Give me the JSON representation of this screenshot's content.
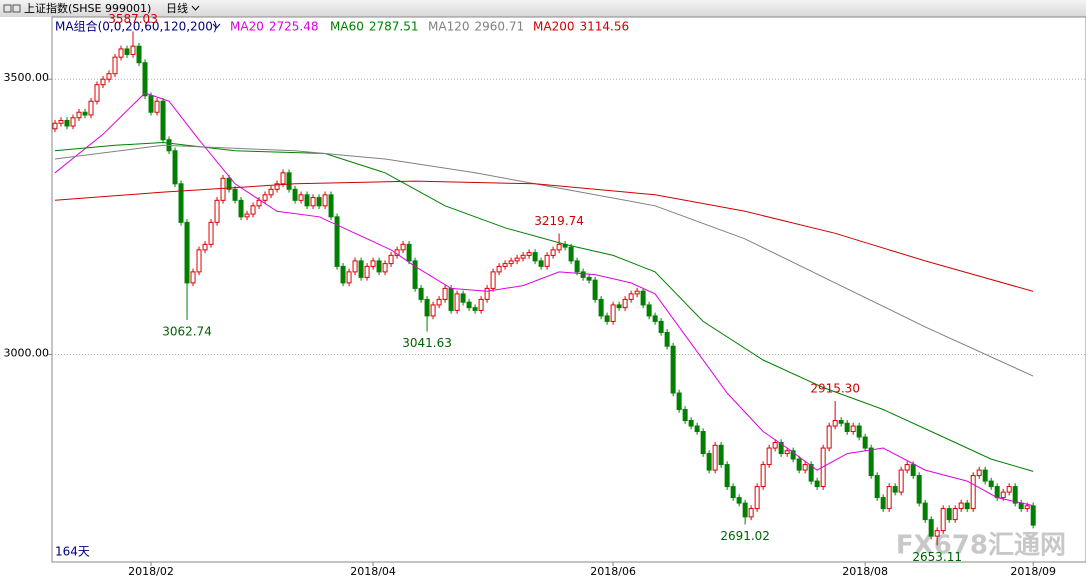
{
  "header": {
    "title": "上证指数(SHSE 999001)",
    "period": "日线"
  },
  "chart_data": {
    "type": "candlestick",
    "legend_title": "MA组合(0,0,20,60,120,200)",
    "day_count": "164天",
    "watermark": "FX678汇通网",
    "up_color": "#e00000",
    "down_color": "#008000",
    "xlim": [
      -0.5,
      171.8
    ],
    "ylim": [
      2623,
      3613
    ],
    "yticks": [
      {
        "value": 3500,
        "label": "3500.00"
      },
      {
        "value": 3000,
        "label": "3000.00"
      }
    ],
    "xticks": [
      {
        "value": 16,
        "label": "2018/02"
      },
      {
        "value": 53,
        "label": "2018/04"
      },
      {
        "value": 93,
        "label": "2018/06"
      },
      {
        "value": 135,
        "label": "2018/08"
      },
      {
        "value": 163,
        "label": "2018/09"
      }
    ],
    "grid": true,
    "candles": [
      [
        3410,
        3426,
        3404,
        3420
      ],
      [
        3420,
        3431,
        3414,
        3425
      ],
      [
        3425,
        3431,
        3409,
        3415
      ],
      [
        3415,
        3436,
        3409,
        3430
      ],
      [
        3430,
        3446,
        3424,
        3440
      ],
      [
        3440,
        3446,
        3429,
        3435
      ],
      [
        3435,
        3466,
        3429,
        3460
      ],
      [
        3460,
        3496,
        3454,
        3490
      ],
      [
        3490,
        3506,
        3484,
        3500
      ],
      [
        3500,
        3516,
        3494,
        3510
      ],
      [
        3510,
        3546,
        3504,
        3540
      ],
      [
        3540,
        3561,
        3534,
        3555
      ],
      [
        3555,
        3561,
        3539,
        3545
      ],
      [
        3545,
        3587.03,
        3539,
        3560
      ],
      [
        3560,
        3566,
        3524,
        3530
      ],
      [
        3530,
        3536,
        3464,
        3470
      ],
      [
        3470,
        3476,
        3434,
        3440
      ],
      [
        3440,
        3466,
        3434,
        3460
      ],
      [
        3460,
        3466,
        3384,
        3390
      ],
      [
        3390,
        3396,
        3364,
        3370
      ],
      [
        3370,
        3376,
        3304,
        3310
      ],
      [
        3310,
        3316,
        3234,
        3240
      ],
      [
        3240,
        3246,
        3062.74,
        3130
      ],
      [
        3130,
        3156,
        3124,
        3150
      ],
      [
        3150,
        3196,
        3144,
        3190
      ],
      [
        3190,
        3206,
        3184,
        3200
      ],
      [
        3200,
        3246,
        3194,
        3240
      ],
      [
        3240,
        3286,
        3234,
        3280
      ],
      [
        3280,
        3326,
        3274,
        3320
      ],
      [
        3320,
        3326,
        3294,
        3300
      ],
      [
        3300,
        3306,
        3274,
        3280
      ],
      [
        3280,
        3286,
        3244,
        3250
      ],
      [
        3250,
        3261,
        3244,
        3255
      ],
      [
        3255,
        3276,
        3249,
        3270
      ],
      [
        3270,
        3286,
        3264,
        3280
      ],
      [
        3280,
        3296,
        3274,
        3290
      ],
      [
        3290,
        3306,
        3284,
        3300
      ],
      [
        3300,
        3316,
        3294,
        3310
      ],
      [
        3310,
        3336,
        3304,
        3330
      ],
      [
        3330,
        3336,
        3294,
        3300
      ],
      [
        3300,
        3306,
        3274,
        3280
      ],
      [
        3280,
        3296,
        3274,
        3290
      ],
      [
        3290,
        3296,
        3264,
        3270
      ],
      [
        3270,
        3291,
        3264,
        3285
      ],
      [
        3285,
        3291,
        3264,
        3270
      ],
      [
        3270,
        3296,
        3264,
        3290
      ],
      [
        3290,
        3296,
        3244,
        3250
      ],
      [
        3250,
        3256,
        3154,
        3160
      ],
      [
        3160,
        3166,
        3124,
        3130
      ],
      [
        3130,
        3156,
        3124,
        3150
      ],
      [
        3150,
        3176,
        3144,
        3170
      ],
      [
        3170,
        3176,
        3134,
        3140
      ],
      [
        3140,
        3166,
        3134,
        3160
      ],
      [
        3160,
        3176,
        3154,
        3170
      ],
      [
        3170,
        3176,
        3144,
        3150
      ],
      [
        3150,
        3171,
        3144,
        3165
      ],
      [
        3165,
        3186,
        3159,
        3180
      ],
      [
        3180,
        3196,
        3174,
        3190
      ],
      [
        3190,
        3206,
        3184,
        3200
      ],
      [
        3200,
        3206,
        3164,
        3170
      ],
      [
        3170,
        3176,
        3114,
        3120
      ],
      [
        3120,
        3126,
        3094,
        3100
      ],
      [
        3100,
        3106,
        3041.63,
        3070
      ],
      [
        3070,
        3096,
        3064,
        3090
      ],
      [
        3090,
        3106,
        3084,
        3100
      ],
      [
        3100,
        3126,
        3094,
        3120
      ],
      [
        3120,
        3126,
        3074,
        3080
      ],
      [
        3080,
        3116,
        3074,
        3110
      ],
      [
        3110,
        3116,
        3089,
        3095
      ],
      [
        3095,
        3101,
        3079,
        3085
      ],
      [
        3085,
        3091,
        3074,
        3080
      ],
      [
        3080,
        3106,
        3074,
        3100
      ],
      [
        3100,
        3126,
        3094,
        3120
      ],
      [
        3120,
        3156,
        3114,
        3150
      ],
      [
        3150,
        3166,
        3144,
        3160
      ],
      [
        3160,
        3171,
        3154,
        3165
      ],
      [
        3165,
        3176,
        3159,
        3170
      ],
      [
        3170,
        3181,
        3164,
        3175
      ],
      [
        3175,
        3186,
        3169,
        3180
      ],
      [
        3180,
        3191,
        3174,
        3185
      ],
      [
        3185,
        3191,
        3164,
        3170
      ],
      [
        3170,
        3176,
        3154,
        3160
      ],
      [
        3160,
        3186,
        3154,
        3180
      ],
      [
        3180,
        3196,
        3174,
        3190
      ],
      [
        3190,
        3219.74,
        3184,
        3200
      ],
      [
        3200,
        3206,
        3189,
        3195
      ],
      [
        3195,
        3201,
        3164,
        3170
      ],
      [
        3170,
        3176,
        3144,
        3150
      ],
      [
        3150,
        3156,
        3134,
        3140
      ],
      [
        3140,
        3146,
        3129,
        3135
      ],
      [
        3135,
        3141,
        3094,
        3100
      ],
      [
        3100,
        3106,
        3064,
        3070
      ],
      [
        3070,
        3076,
        3054,
        3060
      ],
      [
        3060,
        3096,
        3054,
        3090
      ],
      [
        3090,
        3096,
        3079,
        3085
      ],
      [
        3085,
        3106,
        3079,
        3100
      ],
      [
        3100,
        3116,
        3094,
        3110
      ],
      [
        3110,
        3121,
        3104,
        3115
      ],
      [
        3115,
        3121,
        3084,
        3090
      ],
      [
        3090,
        3096,
        3064,
        3070
      ],
      [
        3070,
        3076,
        3054,
        3060
      ],
      [
        3060,
        3066,
        3034,
        3040
      ],
      [
        3040,
        3046,
        3009,
        3015
      ],
      [
        3015,
        3021,
        2924,
        2930
      ],
      [
        2930,
        2936,
        2894,
        2900
      ],
      [
        2900,
        2906,
        2874,
        2880
      ],
      [
        2880,
        2886,
        2864,
        2870
      ],
      [
        2870,
        2876,
        2854,
        2860
      ],
      [
        2860,
        2866,
        2814,
        2820
      ],
      [
        2820,
        2826,
        2784,
        2790
      ],
      [
        2790,
        2841,
        2784,
        2835
      ],
      [
        2835,
        2841,
        2794,
        2800
      ],
      [
        2800,
        2806,
        2754,
        2760
      ],
      [
        2760,
        2766,
        2734,
        2740
      ],
      [
        2740,
        2746,
        2724,
        2730
      ],
      [
        2730,
        2736,
        2691.02,
        2705
      ],
      [
        2705,
        2726,
        2699,
        2720
      ],
      [
        2720,
        2766,
        2714,
        2760
      ],
      [
        2760,
        2806,
        2754,
        2800
      ],
      [
        2800,
        2836,
        2794,
        2830
      ],
      [
        2830,
        2846,
        2824,
        2840
      ],
      [
        2840,
        2846,
        2814,
        2820
      ],
      [
        2820,
        2831,
        2814,
        2825
      ],
      [
        2825,
        2831,
        2804,
        2810
      ],
      [
        2810,
        2816,
        2784,
        2790
      ],
      [
        2790,
        2806,
        2784,
        2800
      ],
      [
        2800,
        2806,
        2764,
        2770
      ],
      [
        2770,
        2776,
        2754,
        2760
      ],
      [
        2760,
        2836,
        2754,
        2830
      ],
      [
        2830,
        2876,
        2824,
        2870
      ],
      [
        2870,
        2915.3,
        2864,
        2880
      ],
      [
        2880,
        2886,
        2869,
        2875
      ],
      [
        2875,
        2881,
        2854,
        2860
      ],
      [
        2860,
        2876,
        2854,
        2870
      ],
      [
        2870,
        2876,
        2844,
        2850
      ],
      [
        2850,
        2856,
        2824,
        2830
      ],
      [
        2830,
        2836,
        2774,
        2780
      ],
      [
        2780,
        2786,
        2734,
        2740
      ],
      [
        2740,
        2746,
        2714,
        2720
      ],
      [
        2720,
        2766,
        2714,
        2760
      ],
      [
        2760,
        2766,
        2744,
        2750
      ],
      [
        2750,
        2796,
        2744,
        2790
      ],
      [
        2790,
        2806,
        2784,
        2800
      ],
      [
        2800,
        2806,
        2774,
        2780
      ],
      [
        2780,
        2786,
        2724,
        2730
      ],
      [
        2730,
        2736,
        2694,
        2700
      ],
      [
        2700,
        2706,
        2664,
        2670
      ],
      [
        2670,
        2686,
        2653.11,
        2680
      ],
      [
        2680,
        2726,
        2674,
        2720
      ],
      [
        2720,
        2726,
        2694,
        2700
      ],
      [
        2700,
        2726,
        2694,
        2720
      ],
      [
        2720,
        2736,
        2714,
        2730
      ],
      [
        2730,
        2736,
        2714,
        2720
      ],
      [
        2720,
        2786,
        2714,
        2780
      ],
      [
        2780,
        2796,
        2774,
        2790
      ],
      [
        2790,
        2796,
        2764,
        2770
      ],
      [
        2770,
        2776,
        2754,
        2760
      ],
      [
        2760,
        2766,
        2734,
        2740
      ],
      [
        2740,
        2756,
        2734,
        2750
      ],
      [
        2750,
        2766,
        2744,
        2760
      ],
      [
        2760,
        2766,
        2724,
        2730
      ],
      [
        2730,
        2736,
        2714,
        2720
      ],
      [
        2720,
        2731,
        2714,
        2725
      ],
      [
        2725,
        2731,
        2684,
        2690
      ]
    ],
    "annotations": [
      {
        "x": 13,
        "value": 3587.03,
        "label": "3587.03",
        "color": "#d00000"
      },
      {
        "x": 22,
        "value": 3062.74,
        "label": "3062.74",
        "color": "#006400"
      },
      {
        "x": 62,
        "value": 3041.63,
        "label": "3041.63",
        "color": "#006400"
      },
      {
        "x": 84,
        "value": 3219.74,
        "label": "3219.74",
        "color": "#d00000"
      },
      {
        "x": 115,
        "value": 2691.02,
        "label": "2691.02",
        "color": "#006400"
      },
      {
        "x": 130,
        "value": 2915.3,
        "label": "2915.30",
        "color": "#d00000"
      },
      {
        "x": 147,
        "value": 2653.11,
        "label": "2653.11",
        "color": "#006400"
      }
    ],
    "series": [
      {
        "name": "MA20",
        "value_label": "2725.48",
        "color": "#e000e0",
        "x": [
          0,
          8,
          15,
          19,
          24,
          30,
          37,
          44,
          50,
          56,
          60,
          66,
          72,
          78,
          84,
          90,
          96,
          100,
          106,
          112,
          118,
          122,
          127,
          132,
          138,
          145,
          152,
          157,
          163
        ],
        "values": [
          3330,
          3400,
          3475,
          3460,
          3390,
          3310,
          3260,
          3250,
          3220,
          3190,
          3160,
          3120,
          3115,
          3125,
          3150,
          3145,
          3130,
          3110,
          3020,
          2930,
          2860,
          2830,
          2790,
          2820,
          2830,
          2790,
          2770,
          2740,
          2725.48
        ]
      },
      {
        "name": "MA60",
        "value_label": "2787.51",
        "color": "#008000",
        "x": [
          0,
          10,
          18,
          30,
          45,
          55,
          65,
          75,
          85,
          93,
          100,
          108,
          118,
          128,
          138,
          148,
          156,
          163
        ],
        "values": [
          3370,
          3380,
          3385,
          3370,
          3365,
          3330,
          3270,
          3230,
          3200,
          3180,
          3150,
          3060,
          2990,
          2940,
          2900,
          2850,
          2810,
          2787.51
        ]
      },
      {
        "name": "MA120",
        "value_label": "2960.71",
        "color": "#808080",
        "x": [
          0,
          18,
          40,
          55,
          70,
          85,
          100,
          115,
          130,
          145,
          163
        ],
        "values": [
          3355,
          3380,
          3370,
          3355,
          3330,
          3300,
          3270,
          3210,
          3130,
          3050,
          2960.71
        ]
      },
      {
        "name": "MA200",
        "value_label": "3114.56",
        "color": "#d00000",
        "x": [
          0,
          18,
          40,
          60,
          80,
          100,
          115,
          130,
          145,
          163
        ],
        "values": [
          3280,
          3295,
          3310,
          3315,
          3310,
          3290,
          3260,
          3220,
          3170,
          3114.56
        ]
      }
    ]
  }
}
